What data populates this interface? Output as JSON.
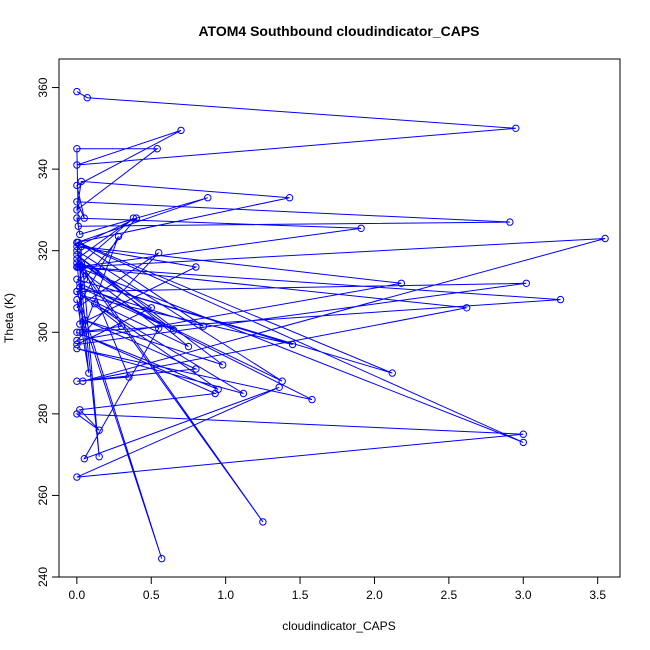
{
  "chart_data": {
    "type": "scatter",
    "title": "ATOM4 Southbound cloudindicator_CAPS",
    "xlabel": "cloudindicator_CAPS",
    "ylabel": "Theta (K)",
    "xlim": [
      -0.12,
      3.65
    ],
    "ylim": [
      240,
      367
    ],
    "x_ticks": [
      0.0,
      0.5,
      1.0,
      1.5,
      2.0,
      2.5,
      3.0,
      3.5
    ],
    "x_tick_labels": [
      "0.0",
      "0.5",
      "1.0",
      "1.5",
      "2.0",
      "2.5",
      "3.0",
      "3.5"
    ],
    "y_ticks": [
      240,
      260,
      280,
      300,
      320,
      340,
      360
    ],
    "y_tick_labels": [
      "240",
      "260",
      "280",
      "300",
      "320",
      "340",
      "360"
    ],
    "grid": false,
    "connected": true,
    "marker": "open-circle",
    "color": "#0000ff",
    "series": [
      {
        "x": [
          0.0,
          0.07,
          2.95,
          0.0,
          0.7,
          0.0,
          0.05,
          0.0,
          2.91,
          0.01,
          0.0,
          0.54,
          0.0,
          0.03,
          1.43,
          0.0,
          0.88,
          0.02,
          0.0,
          1.91,
          0.0,
          0.38,
          0.0,
          0.05,
          0.4,
          0.0,
          0.8,
          0.02,
          0.03,
          2.18,
          0.0,
          0.55,
          0.0,
          0.28,
          0.04,
          0.02,
          3.55,
          0.04,
          2.62,
          0.01,
          3.25,
          0.02,
          0.3,
          0.0,
          3.02,
          0.0,
          0.5,
          0.03,
          0.65,
          0.02,
          0.85,
          0.01,
          2.12,
          0.0,
          1.45,
          0.03,
          0.75,
          0.0,
          0.98,
          0.05,
          0.8,
          0.0,
          0.35,
          0.0,
          1.38,
          0.02,
          1.58,
          0.0,
          1.12,
          0.12,
          0.95,
          0.0,
          0.93,
          0.02,
          0.15,
          0.0,
          3.0,
          0.0,
          1.36,
          0.05,
          0.55,
          0.0,
          3.0,
          0.0,
          0.15,
          0.04,
          1.25,
          0.0,
          0.08,
          0.0,
          0.57,
          0.0
        ],
        "y": [
          359,
          357.5,
          350,
          341,
          349.5,
          336,
          328,
          332,
          327,
          326,
          345,
          345,
          330,
          337,
          333,
          322,
          333,
          324,
          328,
          325.5,
          316,
          328,
          318,
          313,
          328,
          321,
          316,
          302,
          321,
          312,
          298,
          319.5,
          306,
          323.5,
          300,
          316,
          323,
          288,
          306,
          316,
          308,
          300,
          301.5,
          310,
          312,
          297,
          306,
          317,
          300.5,
          311,
          301.5,
          322,
          290,
          313,
          297,
          309,
          296.5,
          319,
          292,
          303,
          291,
          288,
          289,
          320,
          288,
          312,
          283.5,
          296,
          285,
          307,
          286,
          300,
          285,
          281,
          276,
          280,
          275,
          264.5,
          286.5,
          269,
          301,
          316,
          273,
          322,
          269.5,
          316,
          253.5,
          317,
          290,
          308,
          244.5,
          310
        ]
      }
    ]
  }
}
